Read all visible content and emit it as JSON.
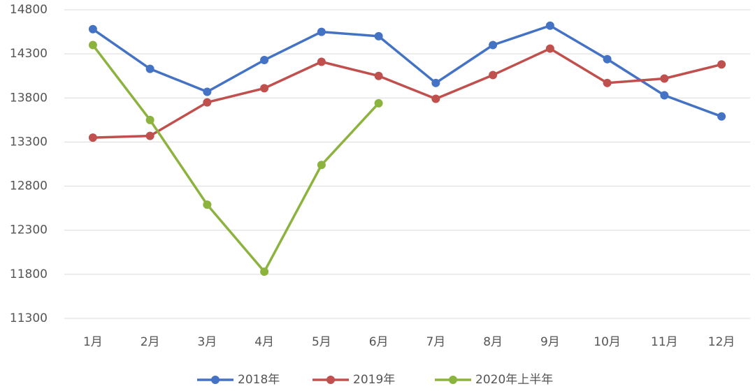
{
  "chart_data": {
    "type": "line",
    "categories": [
      "1月",
      "2月",
      "3月",
      "4月",
      "5月",
      "6月",
      "7月",
      "8月",
      "9月",
      "10月",
      "11月",
      "12月"
    ],
    "series": [
      {
        "name": "2018年",
        "color": "#4472c4",
        "values": [
          14580,
          14130,
          13870,
          14230,
          14550,
          14500,
          13970,
          14400,
          14620,
          14240,
          13830,
          13590
        ]
      },
      {
        "name": "2019年",
        "color": "#c0504d",
        "values": [
          13350,
          13370,
          13750,
          13910,
          14210,
          14050,
          13790,
          14060,
          14360,
          13970,
          14020,
          14180
        ]
      },
      {
        "name": "2020年上半年",
        "color": "#8db33f",
        "values": [
          14400,
          13550,
          12590,
          11830,
          13040,
          13740,
          null,
          null,
          null,
          null,
          null,
          null
        ]
      }
    ],
    "ylim": [
      11300,
      14800
    ],
    "yticks": [
      11300,
      11800,
      12300,
      12800,
      13300,
      13800,
      14300,
      14800
    ],
    "grid": true,
    "legend": "bottom"
  }
}
